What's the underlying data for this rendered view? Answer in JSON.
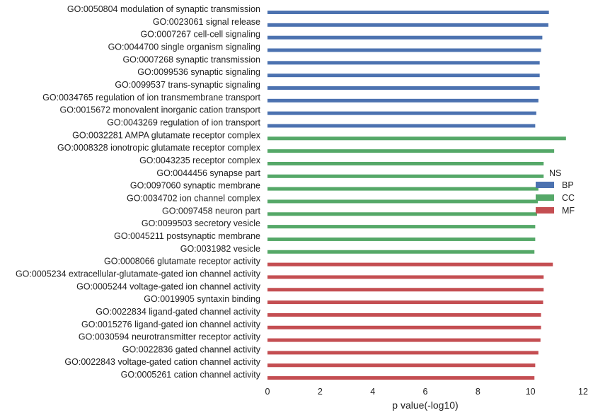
{
  "chart_data": {
    "type": "bar",
    "orientation": "horizontal",
    "xlabel": "p value(-log10)",
    "xlim": [
      0,
      12
    ],
    "xticks": [
      0,
      2,
      4,
      6,
      8,
      10,
      12
    ],
    "grid": false,
    "legend": {
      "title": "NS",
      "placement": "right",
      "entries": [
        {
          "name": "BP",
          "color": "#4c72b0"
        },
        {
          "name": "CC",
          "color": "#55a868"
        },
        {
          "name": "MF",
          "color": "#c44e52"
        }
      ]
    },
    "bars": [
      {
        "label": "GO:0050804 modulation of synaptic transmission",
        "value": 10.7,
        "group": "BP"
      },
      {
        "label": "GO:0023061 signal release",
        "value": 10.68,
        "group": "BP"
      },
      {
        "label": "GO:0007267 cell-cell signaling",
        "value": 10.45,
        "group": "BP"
      },
      {
        "label": "GO:0044700 single organism signaling",
        "value": 10.4,
        "group": "BP"
      },
      {
        "label": "GO:0007268 synaptic transmission",
        "value": 10.35,
        "group": "BP"
      },
      {
        "label": "GO:0099536 synaptic signaling",
        "value": 10.35,
        "group": "BP"
      },
      {
        "label": "GO:0099537 trans-synaptic signaling",
        "value": 10.35,
        "group": "BP"
      },
      {
        "label": "GO:0034765 regulation of ion transmembrane transport",
        "value": 10.3,
        "group": "BP"
      },
      {
        "label": "GO:0015672 monovalent inorganic cation transport",
        "value": 10.22,
        "group": "BP"
      },
      {
        "label": "GO:0043269 regulation of ion transport",
        "value": 10.18,
        "group": "BP"
      },
      {
        "label": "GO:0032281 AMPA glutamate receptor complex",
        "value": 11.35,
        "group": "CC"
      },
      {
        "label": "GO:0008328 ionotropic glutamate receptor complex",
        "value": 10.9,
        "group": "CC"
      },
      {
        "label": "GO:0043235 receptor complex",
        "value": 10.5,
        "group": "CC"
      },
      {
        "label": "GO:0044456 synapse part",
        "value": 10.5,
        "group": "CC"
      },
      {
        "label": "GO:0097060 synaptic membrane",
        "value": 10.3,
        "group": "CC"
      },
      {
        "label": "GO:0034702 ion channel complex",
        "value": 10.28,
        "group": "CC"
      },
      {
        "label": "GO:0097458 neuron part",
        "value": 10.25,
        "group": "CC"
      },
      {
        "label": "GO:0099503 secretory vesicle",
        "value": 10.18,
        "group": "CC"
      },
      {
        "label": "GO:0045211 postsynaptic membrane",
        "value": 10.18,
        "group": "CC"
      },
      {
        "label": "GO:0031982 vesicle",
        "value": 10.15,
        "group": "CC"
      },
      {
        "label": "GO:0008066 glutamate receptor activity",
        "value": 10.85,
        "group": "MF"
      },
      {
        "label": "GO:0005234 extracellular-glutamate-gated ion channel activity",
        "value": 10.5,
        "group": "MF"
      },
      {
        "label": "GO:0005244 voltage-gated ion channel activity",
        "value": 10.5,
        "group": "MF"
      },
      {
        "label": "GO:0019905 syntaxin binding",
        "value": 10.48,
        "group": "MF"
      },
      {
        "label": "GO:0022834 ligand-gated channel activity",
        "value": 10.4,
        "group": "MF"
      },
      {
        "label": "GO:0015276 ligand-gated ion channel activity",
        "value": 10.4,
        "group": "MF"
      },
      {
        "label": "GO:0030594 neurotransmitter receptor activity",
        "value": 10.38,
        "group": "MF"
      },
      {
        "label": "GO:0022836 gated channel activity",
        "value": 10.3,
        "group": "MF"
      },
      {
        "label": "GO:0022843 voltage-gated cation channel activity",
        "value": 10.18,
        "group": "MF"
      },
      {
        "label": "GO:0005261 cation channel activity",
        "value": 10.15,
        "group": "MF"
      }
    ]
  }
}
